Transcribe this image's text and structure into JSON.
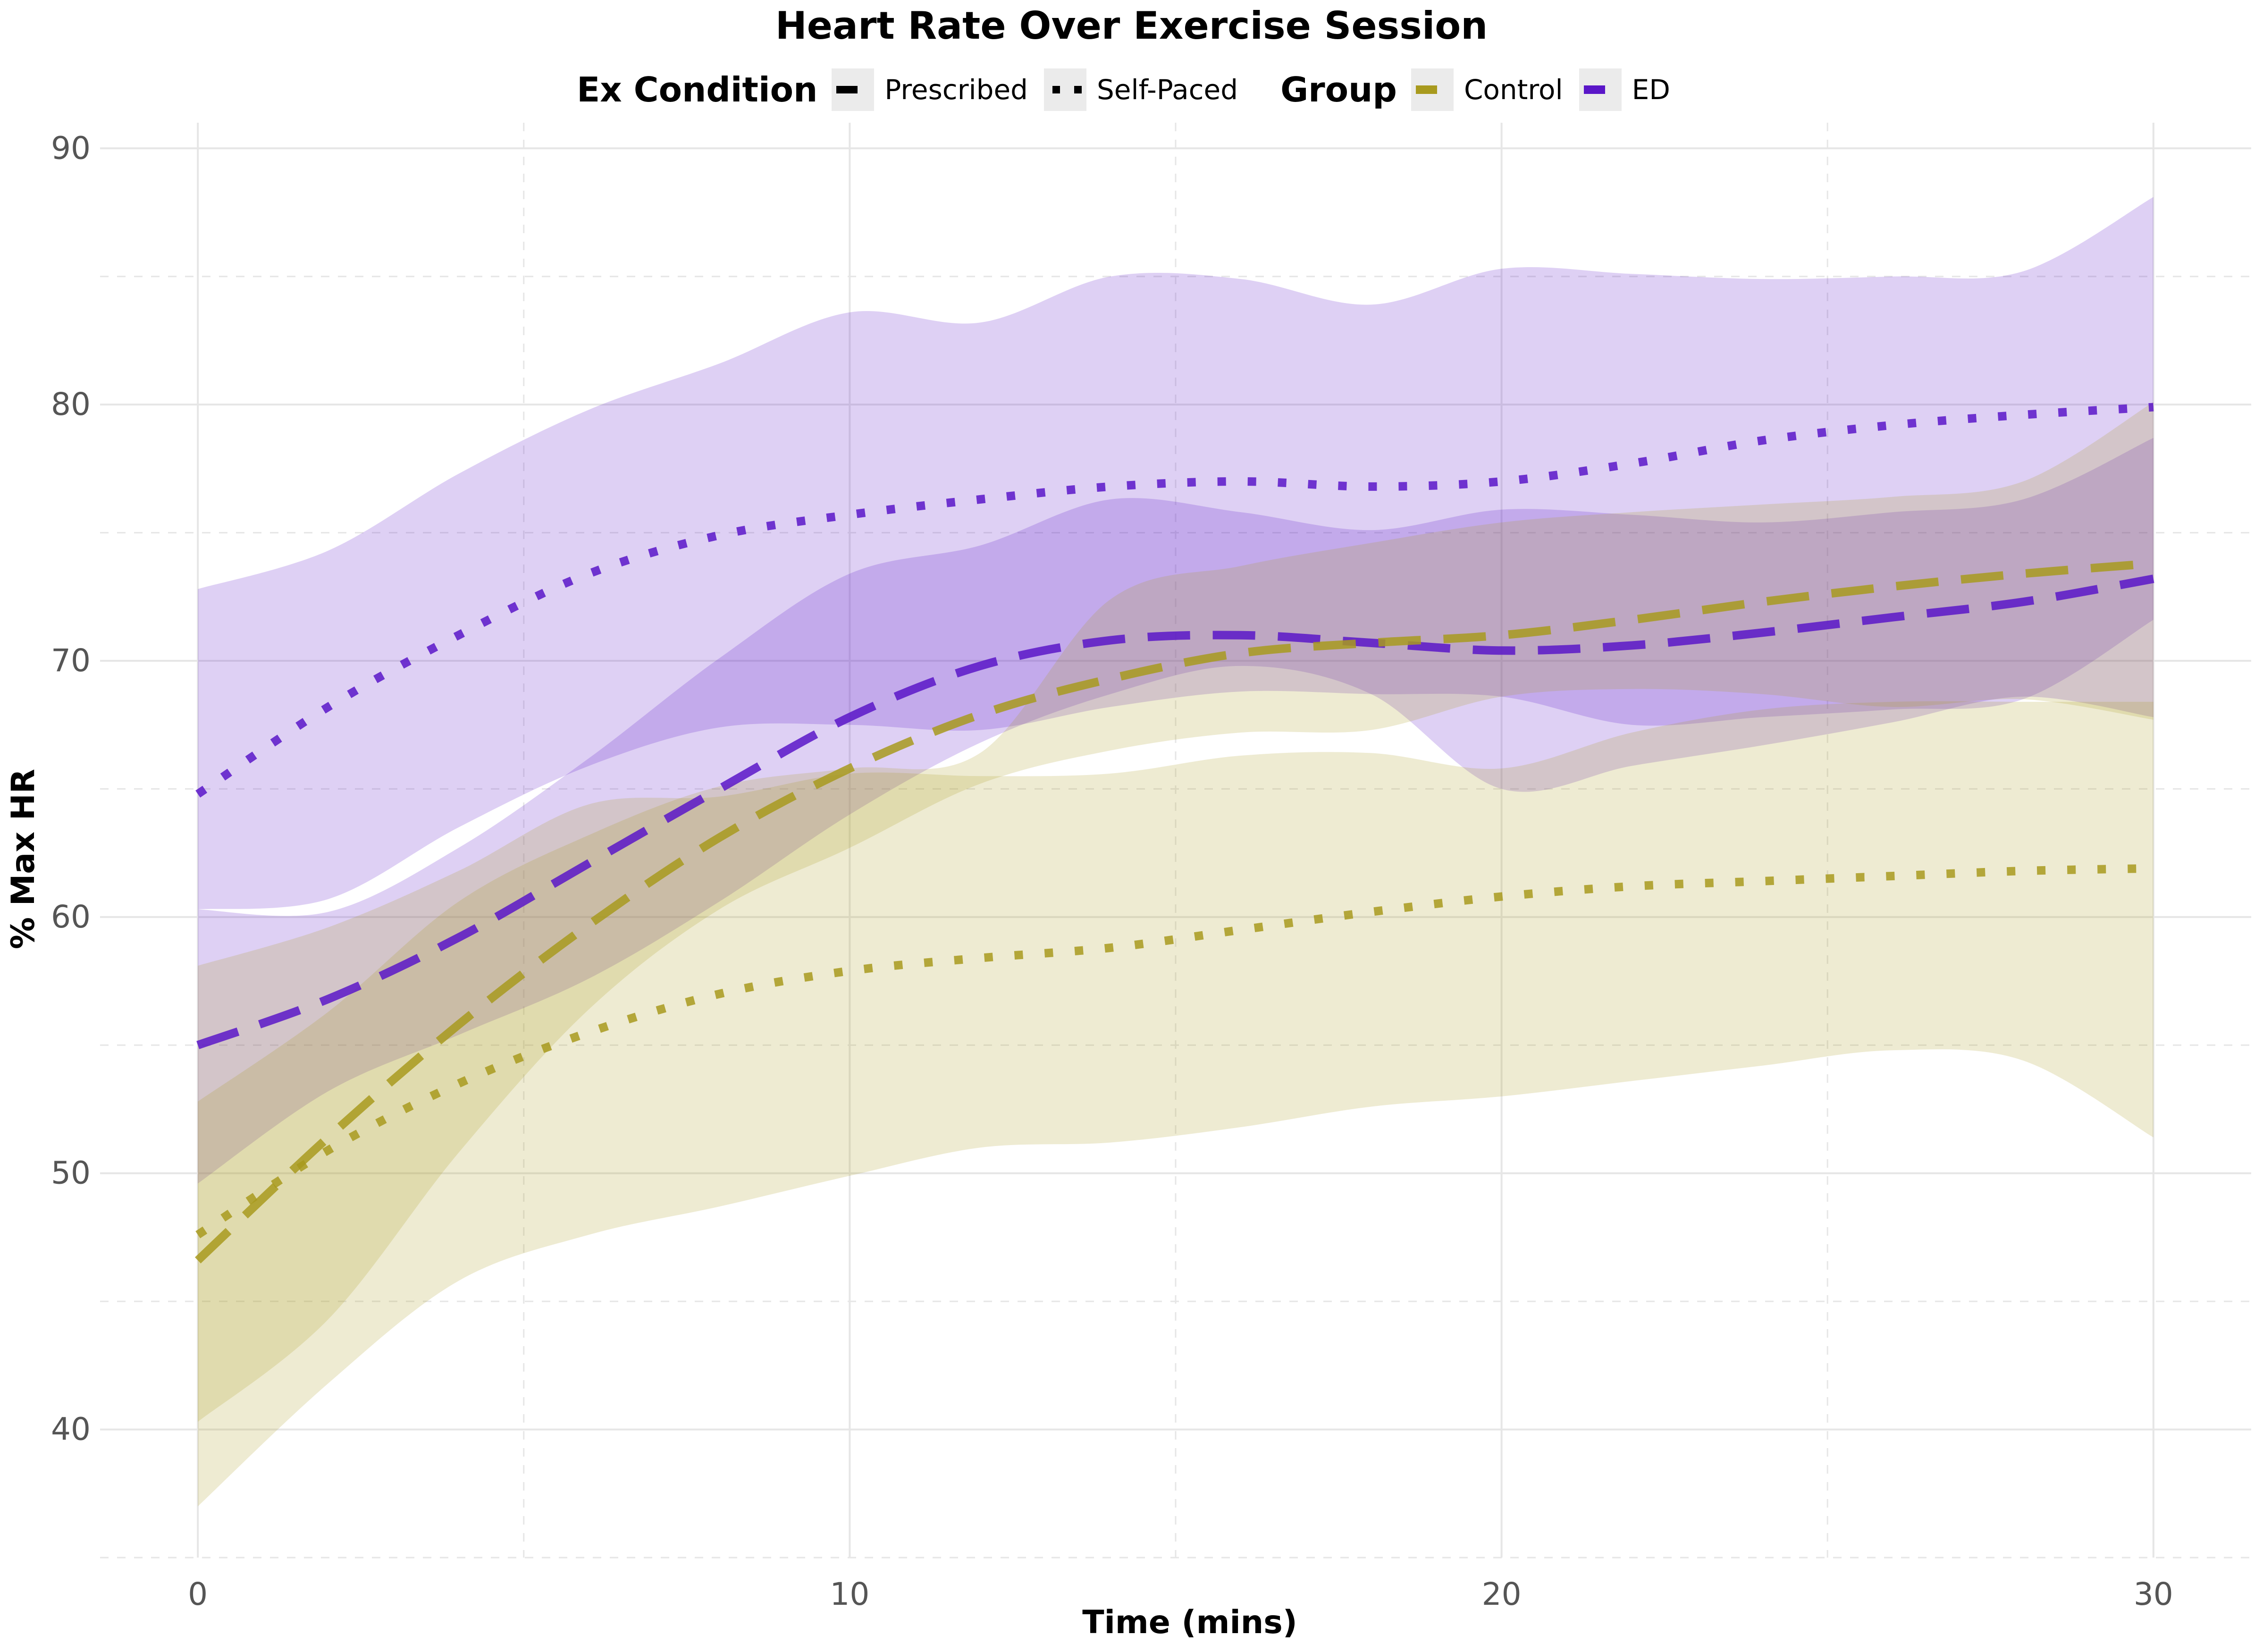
{
  "chart_data": {
    "type": "line",
    "title": "Heart Rate Over Exercise Session",
    "xlabel": "Time (mins)",
    "ylabel": "% Max HR",
    "xlim": [
      -1.5,
      31.5
    ],
    "ylim": [
      35,
      91
    ],
    "xticks": [
      0,
      10,
      20,
      30
    ],
    "yticks": [
      40,
      50,
      60,
      70,
      80,
      90
    ],
    "grid": true,
    "legend_position": "top",
    "legends": [
      {
        "title": "Ex Condition",
        "items": [
          {
            "label": "Prescribed",
            "key": "prescribed"
          },
          {
            "label": "Self-Paced",
            "key": "selfpaced"
          }
        ]
      },
      {
        "title": "Group",
        "items": [
          {
            "label": "Control",
            "key": "control"
          },
          {
            "label": "ED",
            "key": "ed"
          }
        ]
      }
    ],
    "colors": {
      "Control": "#a89a1e",
      "ED": "#5a16c8"
    },
    "series": [
      {
        "group": "ED",
        "condition": "Self-Paced",
        "x": [
          0,
          2,
          4,
          6,
          8,
          10,
          12,
          14,
          16,
          18,
          20,
          22,
          24,
          26,
          28,
          30
        ],
        "y": [
          64.8,
          68.2,
          71.0,
          73.4,
          74.9,
          75.7,
          76.3,
          76.8,
          77.0,
          76.8,
          77.0,
          77.7,
          78.6,
          79.2,
          79.6,
          79.9
        ],
        "lower": [
          60.3,
          60.7,
          63.5,
          65.9,
          67.4,
          67.5,
          67.3,
          68.2,
          68.8,
          68.7,
          68.6,
          67.5,
          67.8,
          68.1,
          68.5,
          71.6
        ],
        "upper": [
          72.8,
          74.3,
          77.3,
          79.8,
          81.6,
          83.6,
          83.2,
          85.0,
          84.9,
          83.9,
          85.3,
          85.1,
          84.9,
          85.0,
          85.2,
          88.1
        ]
      },
      {
        "group": "ED",
        "condition": "Prescribed",
        "x": [
          0,
          2,
          4,
          6,
          8,
          10,
          12,
          14,
          16,
          18,
          20,
          22,
          24,
          26,
          28,
          30
        ],
        "y": [
          55.0,
          56.8,
          59.2,
          62.1,
          65.0,
          67.8,
          69.8,
          70.8,
          71.0,
          70.7,
          70.4,
          70.6,
          71.1,
          71.7,
          72.3,
          73.2
        ],
        "lower": [
          49.6,
          53.2,
          55.4,
          57.6,
          60.6,
          64.0,
          66.8,
          68.7,
          69.8,
          68.7,
          65.0,
          65.9,
          66.7,
          67.6,
          68.6,
          67.8
        ],
        "upper": [
          60.3,
          60.2,
          62.7,
          66.2,
          70.1,
          73.4,
          74.5,
          76.3,
          75.8,
          75.1,
          75.9,
          75.7,
          75.4,
          75.8,
          76.3,
          78.7
        ]
      },
      {
        "group": "Control",
        "condition": "Prescribed",
        "x": [
          0,
          2,
          4,
          6,
          8,
          10,
          12,
          14,
          16,
          18,
          20,
          22,
          24,
          26,
          28,
          30
        ],
        "y": [
          46.6,
          51.4,
          55.8,
          59.7,
          63.1,
          65.8,
          67.9,
          69.3,
          70.3,
          70.7,
          71.0,
          71.6,
          72.3,
          72.9,
          73.4,
          73.8
        ],
        "lower": [
          40.3,
          44.3,
          50.8,
          56.4,
          60.3,
          62.7,
          65.2,
          66.5,
          67.2,
          67.3,
          68.6,
          68.9,
          68.7,
          68.2,
          68.5,
          67.7
        ],
        "upper": [
          52.8,
          56.3,
          60.6,
          63.2,
          65.1,
          65.8,
          66.4,
          72.4,
          73.7,
          74.6,
          75.4,
          75.8,
          76.1,
          76.4,
          77.0,
          80.1
        ]
      },
      {
        "group": "Control",
        "condition": "Self-Paced",
        "x": [
          0,
          2,
          4,
          6,
          8,
          10,
          12,
          14,
          16,
          18,
          20,
          22,
          24,
          26,
          28,
          30
        ],
        "y": [
          47.6,
          50.9,
          53.5,
          55.5,
          57.0,
          57.9,
          58.4,
          58.8,
          59.5,
          60.2,
          60.8,
          61.2,
          61.4,
          61.6,
          61.8,
          61.9
        ],
        "lower": [
          37.0,
          41.8,
          45.8,
          47.6,
          48.7,
          49.9,
          51.0,
          51.2,
          51.8,
          52.6,
          53.0,
          53.6,
          54.2,
          54.8,
          54.4,
          51.4
        ],
        "upper": [
          58.1,
          59.6,
          61.8,
          64.4,
          64.7,
          65.6,
          65.5,
          65.6,
          66.3,
          66.4,
          65.8,
          67.2,
          68.1,
          68.4,
          68.4,
          68.4
        ]
      }
    ]
  }
}
